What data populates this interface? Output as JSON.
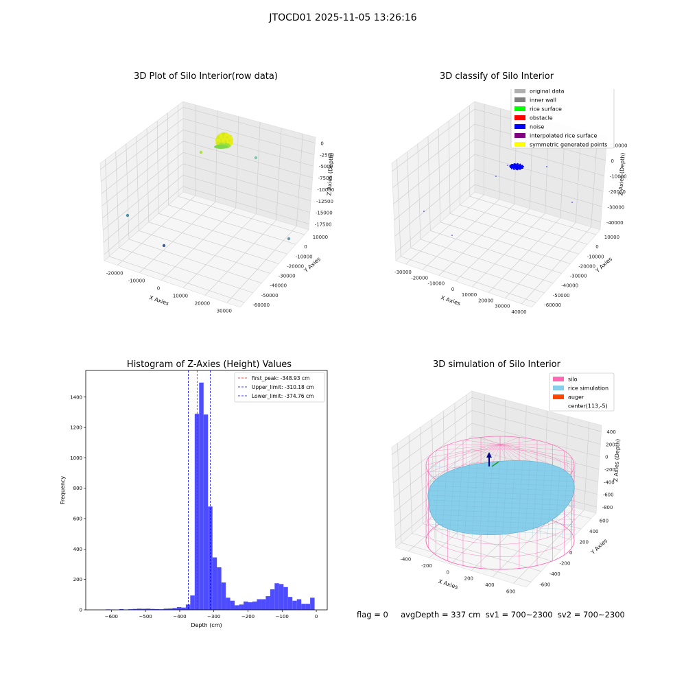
{
  "suptitle": "JTOCD01 2025-11-05 13:26:16",
  "status_text": "flag = 0     avgDepth = 337 cm  sv1 = 700~2300  sv2 = 700~2300",
  "colors": {
    "hist_bar": "#4d4dff",
    "first_peak": "#ff0000",
    "limit": "#0000ff",
    "silo": "#ff69b4",
    "rice_simulation": "#87ceeb",
    "auger": "#ff4500",
    "original_data": "#b0b0b0",
    "inner_wall": "#808080",
    "rice_surface": "#00ff00",
    "obstacle": "#ff0000",
    "noise": "#0000ff",
    "interpolated_rice_surface": "#800080",
    "symmetric_generated_points": "#ffff00"
  },
  "chart_data": [
    {
      "id": "raw",
      "type": "scatter",
      "title": "3D Plot of Silo Interior(row data)",
      "xlabel": "X Axies",
      "ylabel": "Y Axies",
      "zlabel": "Z Axies (Depth)",
      "x_ticks": [
        "-20000",
        "-10000",
        "0",
        "10000",
        "20000",
        "30000"
      ],
      "y_ticks": [
        "10000",
        "0",
        "-10000",
        "-20000",
        "-30000",
        "-40000",
        "-50000",
        "-60000"
      ],
      "z_ticks": [
        "0",
        "-2500",
        "-5000",
        "-7500",
        "-10000",
        "-12500",
        "-15000",
        "-17500"
      ],
      "grid": true
    },
    {
      "id": "classify",
      "type": "scatter",
      "title": "3D classify of Silo Interior",
      "xlabel": "X Axies",
      "ylabel": "Y Axies",
      "zlabel": "Z Axies (Depth)",
      "x_ticks": [
        "-30000",
        "-20000",
        "-10000",
        "0",
        "10000",
        "20000",
        "30000",
        "40000"
      ],
      "y_ticks": [
        "10000",
        "0",
        "-10000",
        "-20000",
        "-30000",
        "-40000",
        "-50000",
        "-60000"
      ],
      "z_ticks": [
        "10000",
        "0",
        "-10000",
        "-20000",
        "-30000",
        "-40000"
      ],
      "legend": [
        "original data",
        "inner wall",
        "rice surface",
        "obstacle",
        "noise",
        "interpolated rice surface",
        "symmetric generated points"
      ],
      "legend_colors": [
        "#b0b0b0",
        "#808080",
        "#00ff00",
        "#ff0000",
        "#0000ff",
        "#800080",
        "#ffff00"
      ],
      "grid": true
    },
    {
      "id": "hist",
      "type": "bar",
      "title": "Histogram of Z-Axies (Height) Values",
      "xlabel": "Depth (cm)",
      "ylabel": "Frequency",
      "xlim": [
        -675,
        32
      ],
      "ylim": [
        0,
        1575
      ],
      "x_ticks": [
        -600,
        -500,
        -400,
        -300,
        -200,
        -100,
        0
      ],
      "y_ticks": [
        0,
        200,
        400,
        600,
        800,
        1000,
        1200,
        1400
      ],
      "bin_width": 13,
      "bin_starts": [
        -616,
        -603,
        -590,
        -577,
        -564,
        -551,
        -538,
        -525,
        -512,
        -499,
        -486,
        -473,
        -460,
        -447,
        -434,
        -421,
        -408,
        -395,
        -382,
        -369,
        -356,
        -343,
        -330,
        -317,
        -304,
        -291,
        -278,
        -265,
        -252,
        -239,
        -226,
        -213,
        -200,
        -187,
        -174,
        -161,
        -148,
        -135,
        -122,
        -109,
        -96,
        -83,
        -70,
        -57,
        -44,
        -31,
        -18,
        -5
      ],
      "values": [
        3,
        2,
        1,
        5,
        2,
        4,
        6,
        8,
        7,
        8,
        6,
        5,
        4,
        8,
        9,
        12,
        18,
        15,
        35,
        95,
        1290,
        1495,
        1285,
        680,
        345,
        280,
        180,
        80,
        60,
        30,
        35,
        55,
        50,
        55,
        70,
        70,
        90,
        135,
        175,
        170,
        150,
        85,
        60,
        70,
        40,
        40,
        80,
        0
      ],
      "vlines": [
        {
          "label": "first_peak: -348.93 cm",
          "x": -348.93,
          "color": "#ff0000"
        },
        {
          "label": "Upper_limit: -310.18 cm",
          "x": -310.18,
          "color": "#0000ff"
        },
        {
          "label": "Lower_limit: -374.76 cm",
          "x": -374.76,
          "color": "#0000ff"
        }
      ],
      "grid": false
    },
    {
      "id": "sim",
      "type": "scatter",
      "title": "3D simulation of Silo Interior",
      "xlabel": "X Axies",
      "ylabel": "Y Axies",
      "zlabel": "Z Axies (Depth)",
      "x_ticks": [
        "-400",
        "-200",
        "0",
        "200",
        "400",
        "600"
      ],
      "y_ticks": [
        "600",
        "400",
        "200",
        "0",
        "-200",
        "-400",
        "-600"
      ],
      "z_ticks": [
        "400",
        "200",
        "0",
        "-200",
        "-400",
        "-600",
        "-800"
      ],
      "legend": [
        "silo",
        "rice simulation",
        "auger",
        "center(113,-5)"
      ],
      "legend_colors": [
        "#ff69b4",
        "#87ceeb",
        "#ff4500",
        ""
      ],
      "grid": true
    }
  ]
}
